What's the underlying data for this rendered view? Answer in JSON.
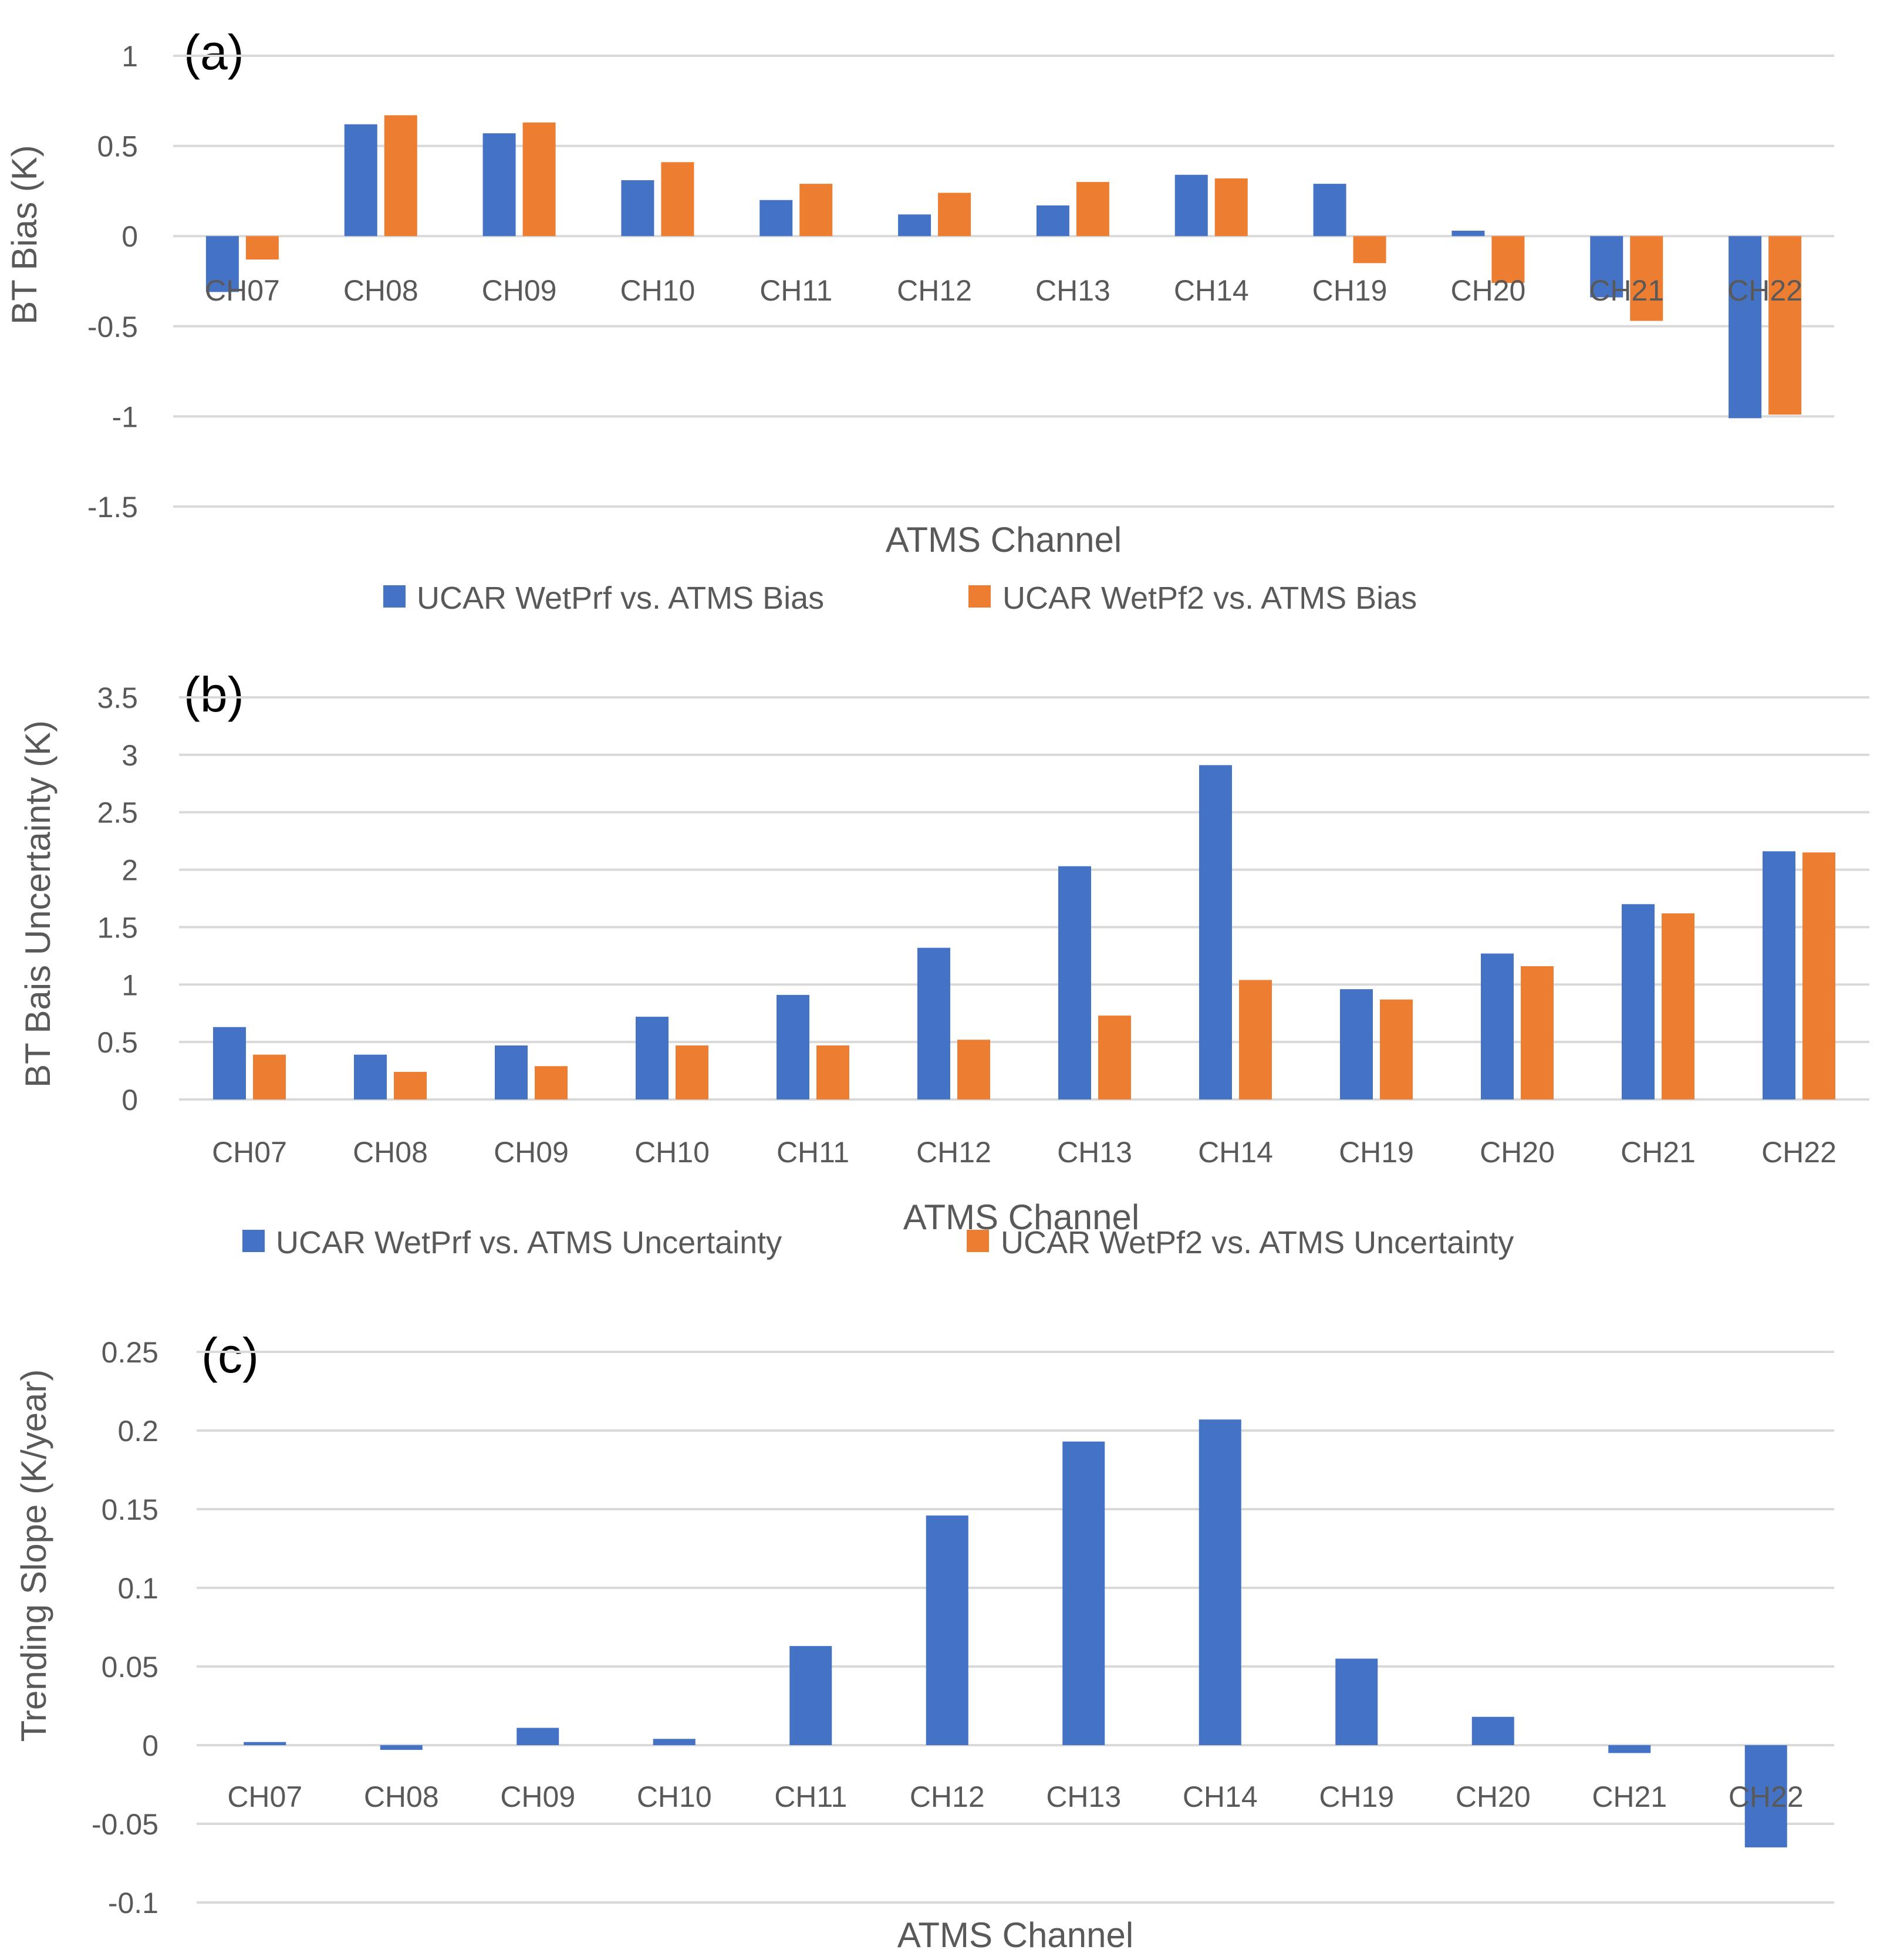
{
  "chart_data": [
    {
      "type": "bar",
      "panel_label": "(a)",
      "title": "",
      "categories": [
        "CH07",
        "CH08",
        "CH09",
        "CH10",
        "CH11",
        "CH12",
        "CH13",
        "CH14",
        "CH19",
        "CH20",
        "CH21",
        "CH22"
      ],
      "series": [
        {
          "name": "UCAR WetPrf vs. ATMS Bias",
          "color": "#4472C4",
          "values": [
            -0.31,
            0.62,
            0.57,
            0.31,
            0.2,
            0.12,
            0.17,
            0.34,
            0.29,
            0.03,
            -0.34,
            -1.01
          ]
        },
        {
          "name": "UCAR WetPf2 vs. ATMS Bias",
          "color": "#ED7D31",
          "values": [
            -0.13,
            0.67,
            0.63,
            0.41,
            0.29,
            0.24,
            0.3,
            0.32,
            -0.15,
            -0.26,
            -0.47,
            -0.99
          ]
        }
      ],
      "ylabel": "BT Bias (K)",
      "xlabel": "ATMS Channel",
      "ylim": [
        -1.5,
        1
      ],
      "yticks": [
        1,
        0.5,
        0,
        -0.5,
        -1,
        -1.5
      ],
      "ytick_labels": [
        "1",
        "0.5",
        "0",
        "-0.5",
        "-1",
        "-1.5"
      ],
      "grid": true,
      "legend_position": "bottom"
    },
    {
      "type": "bar",
      "panel_label": "(b)",
      "title": "",
      "categories": [
        "CH07",
        "CH08",
        "CH09",
        "CH10",
        "CH11",
        "CH12",
        "CH13",
        "CH14",
        "CH19",
        "CH20",
        "CH21",
        "CH22"
      ],
      "series": [
        {
          "name": "UCAR WetPrf vs. ATMS Uncertainty",
          "color": "#4472C4",
          "values": [
            0.63,
            0.39,
            0.47,
            0.72,
            0.91,
            1.32,
            2.03,
            2.91,
            0.96,
            1.27,
            1.7,
            2.16
          ]
        },
        {
          "name": "UCAR WetPf2 vs. ATMS Uncertainty",
          "color": "#ED7D31",
          "values": [
            0.39,
            0.24,
            0.29,
            0.47,
            0.47,
            0.52,
            0.73,
            1.04,
            0.87,
            1.16,
            1.62,
            2.15
          ]
        }
      ],
      "ylabel": "BT Bais Uncertainty (K)",
      "xlabel": "ATMS Channel",
      "ylim": [
        0,
        3.5
      ],
      "yticks": [
        3.5,
        3,
        2.5,
        2,
        1.5,
        1,
        0.5,
        0
      ],
      "ytick_labels": [
        "3.5",
        "3",
        "2.5",
        "2",
        "1.5",
        "1",
        "0.5",
        "0"
      ],
      "grid": true,
      "legend_position": "bottom"
    },
    {
      "type": "bar",
      "panel_label": "(c)",
      "title": "",
      "categories": [
        "CH07",
        "CH08",
        "CH09",
        "CH10",
        "CH11",
        "CH12",
        "CH13",
        "CH14",
        "CH19",
        "CH20",
        "CH21",
        "CH22"
      ],
      "series": [
        {
          "name": "Trending Slope",
          "color": "#4472C4",
          "values": [
            0.002,
            -0.003,
            0.011,
            0.004,
            0.063,
            0.146,
            0.193,
            0.207,
            0.055,
            0.018,
            -0.005,
            -0.065
          ]
        }
      ],
      "ylabel": "Trending Slope (K/year)",
      "xlabel": "ATMS Channel",
      "ylim": [
        -0.1,
        0.25
      ],
      "yticks": [
        0.25,
        0.2,
        0.15,
        0.1,
        0.05,
        0,
        -0.05,
        -0.1
      ],
      "ytick_labels": [
        "0.25",
        "0.2",
        "0.15",
        "0.1",
        "0.05",
        "0",
        "-0.05",
        "-0.1"
      ],
      "grid": true,
      "legend_position": "none"
    }
  ]
}
